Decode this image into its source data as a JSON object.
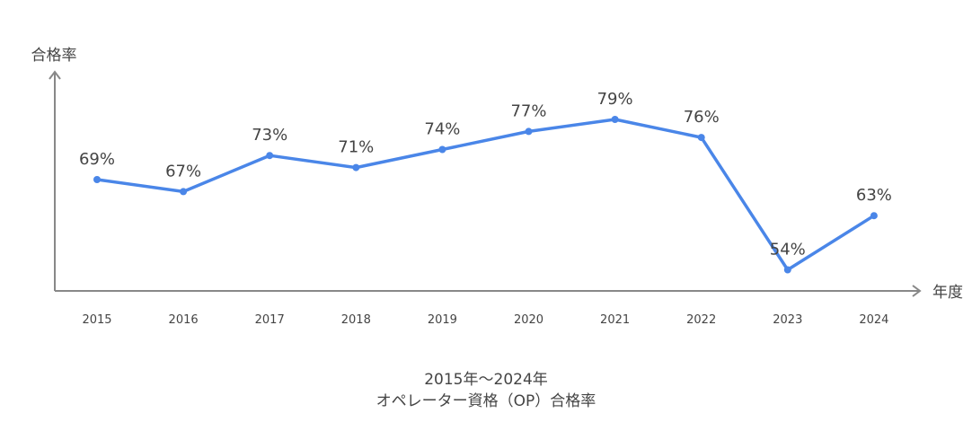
{
  "chart_data": {
    "type": "line",
    "title": "2015年〜2024年",
    "subtitle": "オペレーター資格（OP）合格率",
    "xlabel": "年度",
    "ylabel": "合格率",
    "categories": [
      "2015",
      "2016",
      "2017",
      "2018",
      "2019",
      "2020",
      "2021",
      "2022",
      "2023",
      "2024"
    ],
    "values": [
      69,
      67,
      73,
      71,
      74,
      77,
      79,
      76,
      54,
      63
    ],
    "data_labels": [
      "69%",
      "67%",
      "73%",
      "71%",
      "74%",
      "77%",
      "79%",
      "76%",
      "54%",
      "63%"
    ],
    "grid": false,
    "legend": "none",
    "line_color": "#4a86e8",
    "axis_color": "#888888"
  }
}
